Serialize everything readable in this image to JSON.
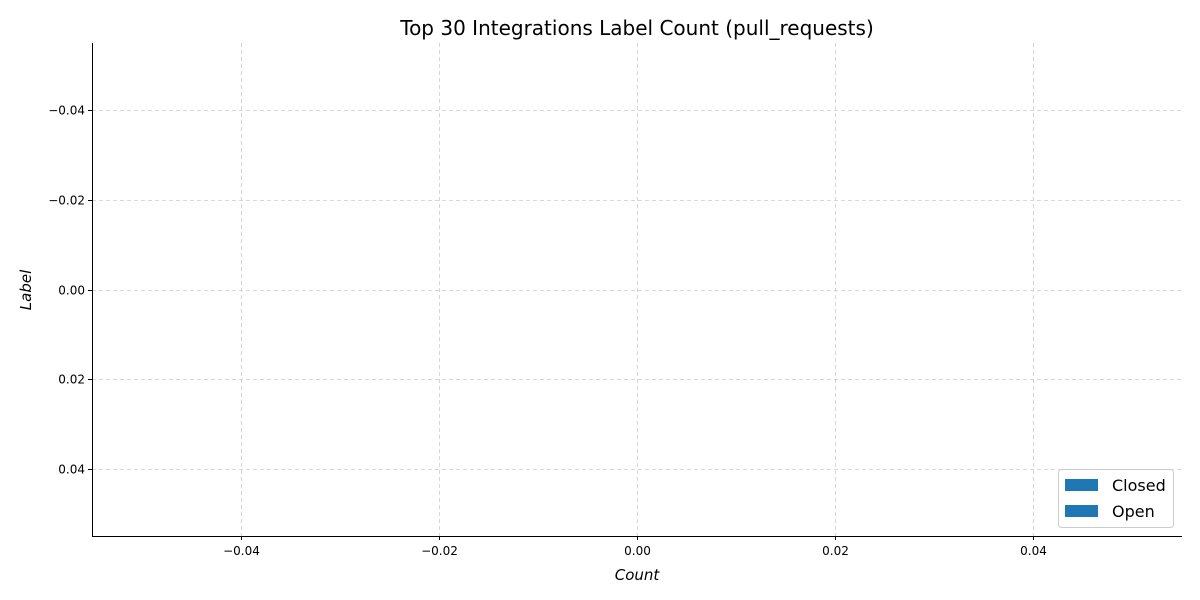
{
  "chart_data": {
    "type": "bar",
    "orientation": "horizontal",
    "title": "Top 30 Integrations Label Count (pull_requests)",
    "xlabel": "Count",
    "ylabel": "Label",
    "xlim": [
      -0.055,
      0.055
    ],
    "ylim": [
      0.055,
      -0.055
    ],
    "y_inverted": true,
    "xticks": [
      -0.04,
      -0.02,
      0.0,
      0.02,
      0.04
    ],
    "xtick_labels": [
      "−0.04",
      "−0.02",
      "0.00",
      "0.02",
      "0.04"
    ],
    "yticks": [
      -0.04,
      -0.02,
      0.0,
      0.02,
      0.04
    ],
    "ytick_labels": [
      "−0.04",
      "−0.02",
      "0.00",
      "0.02",
      "0.04"
    ],
    "grid": true,
    "grid_style": "dashed",
    "legend_position": "lower-right",
    "categories": [],
    "series": [
      {
        "name": "Closed",
        "color": "#1f77b4",
        "values": []
      },
      {
        "name": "Open",
        "color": "#1f77b4",
        "values": []
      }
    ]
  },
  "colors": {
    "grid": "#cccccc",
    "axis": "#000000",
    "legend_border": "#cccccc"
  }
}
